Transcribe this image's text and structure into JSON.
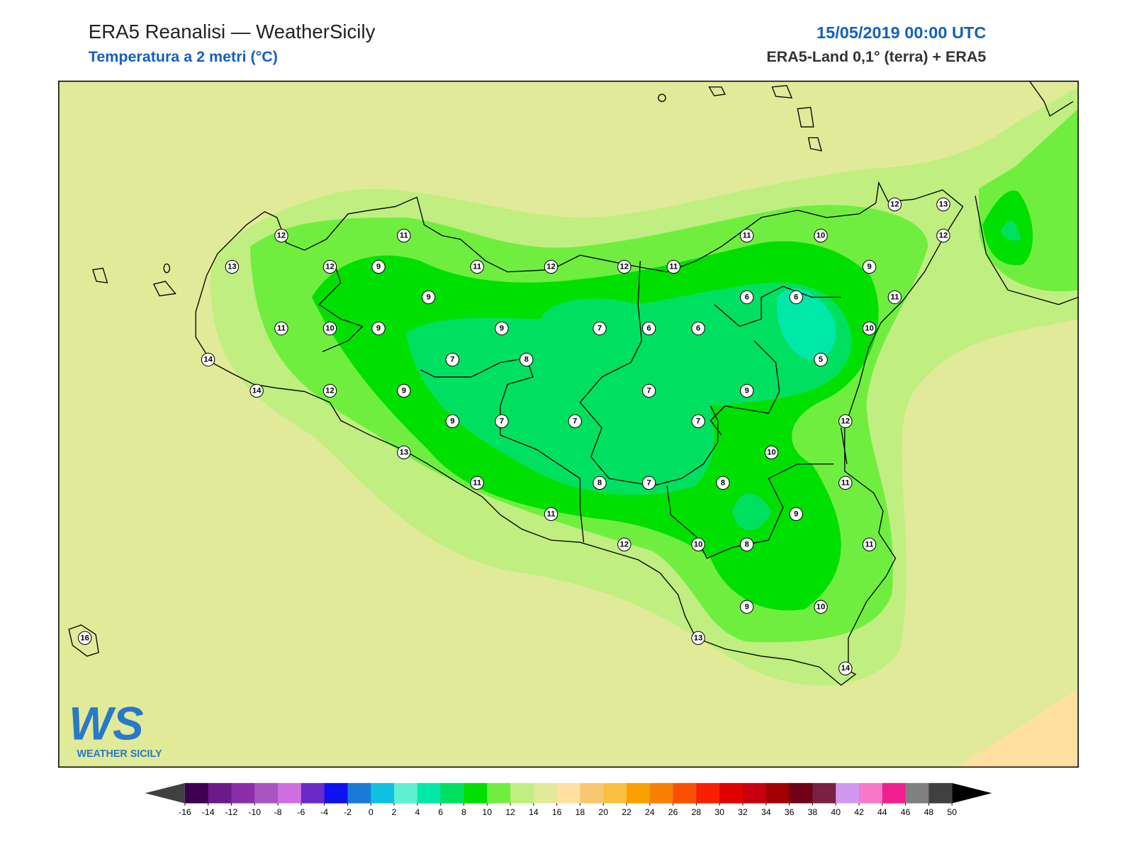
{
  "header": {
    "title": "ERA5 Reanalisi — WeatherSicily",
    "subtitle": "Temperatura a 2 metri (°C)",
    "date": "15/05/2019 00:00 UTC",
    "source": "ERA5-Land 0,1° (terra) + ERA5"
  },
  "map": {
    "stations": [
      12,
      11,
      13,
      12,
      9,
      11,
      12,
      12,
      11,
      11,
      10,
      12,
      13,
      12,
      9,
      11,
      9,
      6,
      6,
      11,
      10,
      9,
      9,
      7,
      6,
      6,
      10,
      14,
      7,
      8,
      5,
      14,
      12,
      9,
      7,
      9,
      9,
      7,
      7,
      7,
      12,
      13,
      10,
      11,
      8,
      7,
      8,
      11,
      11,
      9,
      12,
      10,
      8,
      11,
      9,
      10,
      16,
      13,
      14
    ]
  },
  "colorbar": {
    "ticks": [
      -16,
      -14,
      -12,
      -10,
      -8,
      -6,
      -4,
      -2,
      0,
      2,
      4,
      6,
      8,
      10,
      12,
      14,
      16,
      18,
      20,
      22,
      24,
      26,
      28,
      30,
      32,
      34,
      36,
      38,
      40,
      42,
      44,
      46,
      48,
      50
    ],
    "colors": [
      "#3d0050",
      "#6a1a8a",
      "#8a2fa8",
      "#a855c0",
      "#d070e0",
      "#6a2ac8",
      "#1010f0",
      "#1a7ad8",
      "#10c0e0",
      "#60f0d0",
      "#00e8a8",
      "#00e060",
      "#00e000",
      "#70ee40",
      "#c0ee80",
      "#e0ea98",
      "#ffe0a0",
      "#f8c870",
      "#f8c040",
      "#f8a000",
      "#f88000",
      "#f85000",
      "#f82000",
      "#e00000",
      "#c80010",
      "#a00000",
      "#700018",
      "#7a2040",
      "#d098f0",
      "#f878c8",
      "#f02090",
      "#808080",
      "#404040"
    ],
    "under_color": "#404040",
    "over_color": "#000000"
  },
  "logo": {
    "mark": "WS",
    "name": "WEATHER SICILY"
  }
}
